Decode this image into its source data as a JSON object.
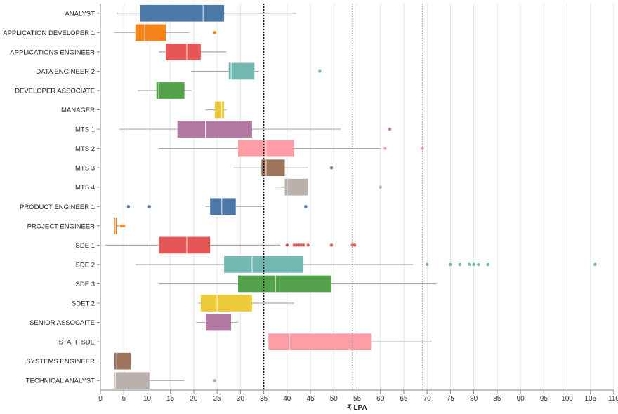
{
  "chart_data": {
    "type": "boxplot",
    "title": "",
    "xlabel": "₹ LPA",
    "ylabel": "",
    "xlim": [
      0,
      110
    ],
    "xticks": [
      0,
      5,
      10,
      15,
      20,
      25,
      30,
      35,
      40,
      45,
      50,
      55,
      60,
      65,
      70,
      75,
      80,
      85,
      90,
      95,
      100,
      105,
      110
    ],
    "grid": true,
    "reference_lines": [
      {
        "value": 35,
        "style": "dotted-dark"
      },
      {
        "value": 54,
        "style": "dotted-light"
      },
      {
        "value": 69,
        "style": "dotted-light"
      }
    ],
    "categories": [
      {
        "name": "ANALYST",
        "color": "#4c78a8",
        "whisker_low": 3.5,
        "q1": 8.5,
        "median": 22,
        "q3": 26.5,
        "whisker_high": 42,
        "outliers": []
      },
      {
        "name": "APPLICATION DEVELOPER 1",
        "color": "#f58518",
        "whisker_low": 3,
        "q1": 7.5,
        "median": 9.5,
        "q3": 14,
        "whisker_high": 19,
        "outliers": [
          24.5
        ]
      },
      {
        "name": "APPLICATIONS ENGINEER",
        "color": "#e45756",
        "whisker_low": 12.5,
        "q1": 14,
        "median": 18.5,
        "q3": 21.5,
        "whisker_high": 27,
        "outliers": []
      },
      {
        "name": "DATA ENGINEER 2",
        "color": "#72b7b2",
        "whisker_low": 19.5,
        "q1": 27.5,
        "median": 28,
        "q3": 33,
        "whisker_high": 34,
        "outliers": [
          47
        ]
      },
      {
        "name": "DEVELOPER ASSOCIATE",
        "color": "#54a24b",
        "whisker_low": 8,
        "q1": 12,
        "median": 12.5,
        "q3": 18,
        "whisker_high": 19.5,
        "outliers": []
      },
      {
        "name": "MANAGER",
        "color": "#eeca3b",
        "whisker_low": 22.5,
        "q1": 24.5,
        "median": 26,
        "q3": 26.5,
        "whisker_high": 27,
        "outliers": []
      },
      {
        "name": "MTS 1",
        "color": "#b279a2",
        "whisker_low": 4,
        "q1": 16.5,
        "median": 22.5,
        "q3": 32.5,
        "whisker_high": 51.5,
        "outliers": [
          62
        ]
      },
      {
        "name": "MTS 2",
        "color": "#ff9da6",
        "whisker_low": 12.5,
        "q1": 29.5,
        "median": 35.5,
        "q3": 41.5,
        "whisker_high": 60,
        "outliers": [
          61,
          69
        ]
      },
      {
        "name": "MTS 3",
        "color": "#9d755d",
        "whisker_low": 28.5,
        "q1": 34.5,
        "median": 35.5,
        "q3": 39.5,
        "whisker_high": 44.5,
        "outliers": [
          49.5
        ]
      },
      {
        "name": "MTS 4",
        "color": "#bab0ac",
        "whisker_low": 37.5,
        "q1": 39.5,
        "median": 40,
        "q3": 44.5,
        "whisker_high": 44.5,
        "outliers": [
          60
        ]
      },
      {
        "name": "PRODUCT ENGINEER 1",
        "color": "#4c78a8",
        "whisker_low": 22.5,
        "q1": 23.5,
        "median": 26,
        "q3": 29,
        "whisker_high": 35,
        "outliers": [
          6,
          10.5,
          44
        ]
      },
      {
        "name": "PROJECT ENGINEER",
        "color": "#f58518",
        "whisker_low": 3,
        "q1": 3,
        "median": 3.2,
        "q3": 3.5,
        "whisker_high": 4,
        "outliers": [
          4.5,
          5
        ]
      },
      {
        "name": "SDE 1",
        "color": "#e45756",
        "whisker_low": 1,
        "q1": 12.5,
        "median": 18.5,
        "q3": 23.5,
        "whisker_high": 38.5,
        "outliers": [
          40,
          41.5,
          42,
          42.5,
          43,
          43.5,
          44.5,
          49.5,
          54,
          54.5
        ]
      },
      {
        "name": "SDE 2",
        "color": "#72b7b2",
        "whisker_low": 7.5,
        "q1": 26.5,
        "median": 32.5,
        "q3": 43.5,
        "whisker_high": 67,
        "outliers": [
          70,
          75,
          77,
          79,
          80,
          81,
          83,
          106
        ]
      },
      {
        "name": "SDE 3",
        "color": "#54a24b",
        "whisker_low": 12.5,
        "q1": 29.5,
        "median": 37.5,
        "q3": 49.5,
        "whisker_high": 72,
        "outliers": []
      },
      {
        "name": "SDET 2",
        "color": "#eeca3b",
        "whisker_low": 21,
        "q1": 21.5,
        "median": 25,
        "q3": 32.5,
        "whisker_high": 41.5,
        "outliers": []
      },
      {
        "name": "SENIOR ASSOCAITE",
        "color": "#b279a2",
        "whisker_low": 20.5,
        "q1": 22.5,
        "median": 22.5,
        "q3": 28,
        "whisker_high": 29.5,
        "outliers": []
      },
      {
        "name": "STAFF SDE",
        "color": "#ff9da6",
        "whisker_low": 36,
        "q1": 36,
        "median": 40.5,
        "q3": 58,
        "whisker_high": 71,
        "outliers": []
      },
      {
        "name": "SYSTEMS ENGINEER",
        "color": "#9d755d",
        "whisker_low": 3,
        "q1": 3,
        "median": 3.5,
        "q3": 6.5,
        "whisker_high": 6.5,
        "outliers": []
      },
      {
        "name": "TECHNICAL ANALYST",
        "color": "#bab0ac",
        "whisker_low": 3,
        "q1": 3,
        "median": 3.2,
        "q3": 10.5,
        "whisker_high": 18,
        "outliers": [
          24.5
        ]
      }
    ]
  }
}
